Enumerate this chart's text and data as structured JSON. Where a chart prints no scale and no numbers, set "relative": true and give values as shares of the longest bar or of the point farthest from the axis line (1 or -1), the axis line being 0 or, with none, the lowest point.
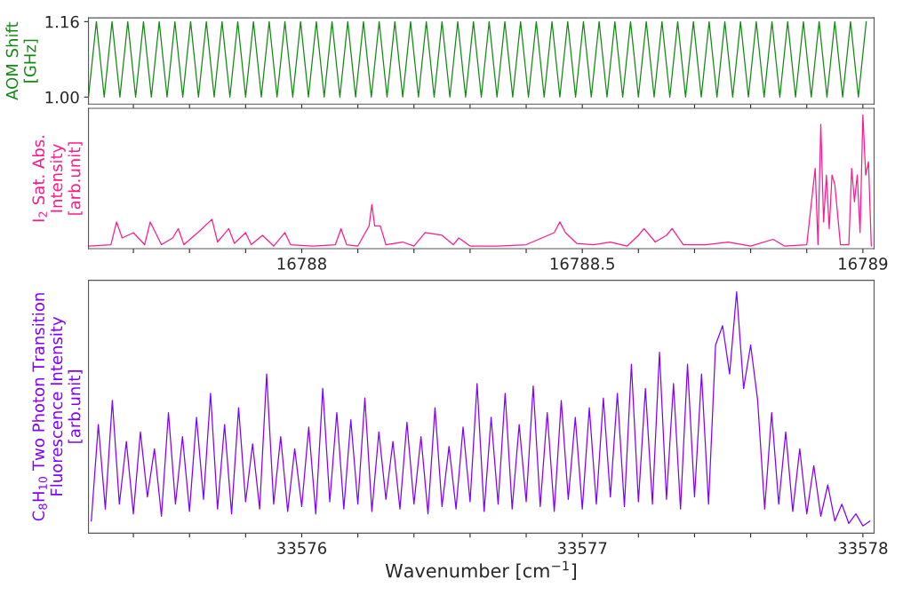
{
  "chart_data": [
    {
      "type": "line",
      "ylabel": "AOM Shift\n[GHz]",
      "xlim": [
        16787.62,
        16789.02
      ],
      "ylim": [
        0.985,
        1.168
      ],
      "tick_labels": "y",
      "yticks": [
        {
          "value": 1.0,
          "label": "1.00"
        },
        {
          "value": 1.16,
          "label": "1.16"
        }
      ],
      "xticks": [
        {
          "value": 16787.7,
          "label": null
        },
        {
          "value": 16787.8,
          "label": null
        },
        {
          "value": 16787.9,
          "label": null
        },
        {
          "value": 16788,
          "label": null
        },
        {
          "value": 16788.1,
          "label": null
        },
        {
          "value": 16788.2,
          "label": null
        },
        {
          "value": 16788.3,
          "label": null
        },
        {
          "value": 16788.4,
          "label": null
        },
        {
          "value": 16788.5,
          "label": null
        },
        {
          "value": 16788.6,
          "label": null
        },
        {
          "value": 16788.7,
          "label": null
        },
        {
          "value": 16788.8,
          "label": null
        },
        {
          "value": 16788.9,
          "label": null
        },
        {
          "value": 16789,
          "label": null
        }
      ],
      "series": [
        {
          "color": "#108a10",
          "x": [
            16787.62,
            16787.634,
            16787.648,
            16787.662,
            16787.676,
            16787.69,
            16787.704,
            16787.718,
            16787.732,
            16787.746,
            16787.76,
            16787.774,
            16787.788,
            16787.802,
            16787.816,
            16787.83,
            16787.844,
            16787.858,
            16787.872,
            16787.886,
            16787.9,
            16787.914,
            16787.928,
            16787.942,
            16787.956,
            16787.97,
            16787.984,
            16787.998,
            16788.012,
            16788.026,
            16788.04,
            16788.054,
            16788.068,
            16788.082,
            16788.096,
            16788.11,
            16788.124,
            16788.138,
            16788.152,
            16788.166,
            16788.18,
            16788.194,
            16788.208,
            16788.222,
            16788.236,
            16788.25,
            16788.264,
            16788.278,
            16788.292,
            16788.306,
            16788.32,
            16788.334,
            16788.348,
            16788.362,
            16788.376,
            16788.39,
            16788.404,
            16788.418,
            16788.432,
            16788.446,
            16788.46,
            16788.474,
            16788.488,
            16788.502,
            16788.516,
            16788.53,
            16788.544,
            16788.558,
            16788.572,
            16788.586,
            16788.6,
            16788.614,
            16788.628,
            16788.642,
            16788.656,
            16788.67,
            16788.684,
            16788.698,
            16788.712,
            16788.726,
            16788.74,
            16788.754,
            16788.768,
            16788.782,
            16788.796,
            16788.81,
            16788.824,
            16788.838,
            16788.852,
            16788.866,
            16788.88,
            16788.894,
            16788.908,
            16788.922,
            16788.936,
            16788.95,
            16788.964,
            16788.978,
            16788.992,
            16789.006
          ],
          "values": [
            1.0,
            1.16,
            1.0,
            1.16,
            1.0,
            1.16,
            1.0,
            1.16,
            1.0,
            1.16,
            1.0,
            1.16,
            1.0,
            1.16,
            1.0,
            1.16,
            1.0,
            1.16,
            1.0,
            1.16,
            1.0,
            1.16,
            1.0,
            1.16,
            1.0,
            1.16,
            1.0,
            1.16,
            1.0,
            1.16,
            1.0,
            1.16,
            1.0,
            1.16,
            1.0,
            1.16,
            1.0,
            1.16,
            1.0,
            1.16,
            1.0,
            1.16,
            1.0,
            1.16,
            1.0,
            1.16,
            1.0,
            1.16,
            1.0,
            1.16,
            1.0,
            1.16,
            1.0,
            1.16,
            1.0,
            1.16,
            1.0,
            1.16,
            1.0,
            1.16,
            1.0,
            1.16,
            1.0,
            1.16,
            1.0,
            1.16,
            1.0,
            1.16,
            1.0,
            1.16,
            1.0,
            1.16,
            1.0,
            1.16,
            1.0,
            1.16,
            1.0,
            1.16,
            1.0,
            1.16,
            1.0,
            1.16,
            1.0,
            1.16,
            1.0,
            1.16,
            1.0,
            1.16,
            1.0,
            1.16,
            1.0,
            1.16,
            1.0,
            1.16,
            1.0,
            1.16,
            1.0,
            1.16,
            1.0,
            1.16
          ]
        }
      ]
    },
    {
      "type": "line",
      "ylabel": "I$_{2}$ Sat. Abs.\nIntensity\n[arb.unit]",
      "relative": true,
      "xlim": [
        16787.62,
        16789.02
      ],
      "tick_labels": "x",
      "xticks": [
        {
          "value": 16787.7,
          "label": null
        },
        {
          "value": 16787.8,
          "label": null
        },
        {
          "value": 16787.9,
          "label": null
        },
        16788,
        {
          "value": 16788.1,
          "label": null
        },
        {
          "value": 16788.2,
          "label": null
        },
        {
          "value": 16788.3,
          "label": null
        },
        {
          "value": 16788.4,
          "label": null
        },
        16788.5,
        {
          "value": 16788.6,
          "label": null
        },
        {
          "value": 16788.7,
          "label": null
        },
        {
          "value": 16788.8,
          "label": null
        },
        {
          "value": 16788.9,
          "label": null
        },
        16789
      ],
      "series": [
        {
          "color": "#ff1a8c",
          "x": [
            16787.62,
            16787.66,
            16787.67,
            16787.68,
            16787.7,
            16787.72,
            16787.73,
            16787.75,
            16787.77,
            16787.78,
            16787.79,
            16787.82,
            16787.84,
            16787.85,
            16787.87,
            16787.88,
            16787.9,
            16787.91,
            16787.93,
            16787.95,
            16787.97,
            16787.98,
            16788.02,
            16788.06,
            16788.07,
            16788.08,
            16788.1,
            16788.12,
            16788.125,
            16788.13,
            16788.14,
            16788.15,
            16788.18,
            16788.2,
            16788.22,
            16788.25,
            16788.27,
            16788.28,
            16788.3,
            16788.35,
            16788.4,
            16788.45,
            16788.46,
            16788.47,
            16788.49,
            16788.52,
            16788.55,
            16788.58,
            16788.6,
            16788.61,
            16788.63,
            16788.65,
            16788.66,
            16788.68,
            16788.72,
            16788.76,
            16788.8,
            16788.84,
            16788.86,
            16788.9,
            16788.915,
            16788.92,
            16788.925,
            16788.93,
            16788.935,
            16788.94,
            16788.945,
            16788.95,
            16788.96,
            16788.975,
            16788.98,
            16788.985,
            16788.99,
            16788.995,
            16789.0,
            16789.005,
            16789.01,
            16789.015
          ],
          "values": [
            0.02,
            0.03,
            0.2,
            0.08,
            0.12,
            0.03,
            0.2,
            0.03,
            0.08,
            0.15,
            0.03,
            0.14,
            0.22,
            0.05,
            0.15,
            0.04,
            0.12,
            0.03,
            0.1,
            0.02,
            0.12,
            0.03,
            0.02,
            0.03,
            0.15,
            0.03,
            0.02,
            0.17,
            0.33,
            0.17,
            0.17,
            0.03,
            0.05,
            0.02,
            0.12,
            0.1,
            0.03,
            0.08,
            0.02,
            0.02,
            0.03,
            0.12,
            0.2,
            0.12,
            0.04,
            0.03,
            0.05,
            0.02,
            0.1,
            0.15,
            0.05,
            0.1,
            0.15,
            0.03,
            0.03,
            0.05,
            0.02,
            0.07,
            0.02,
            0.03,
            0.6,
            0.03,
            0.93,
            0.2,
            0.55,
            0.15,
            0.55,
            0.48,
            0.03,
            0.03,
            0.6,
            0.35,
            0.55,
            0.12,
            1.0,
            0.55,
            0.65,
            0.02
          ]
        }
      ]
    },
    {
      "type": "line",
      "ylabel": "C$_{8}$H$_{10}$ Two Photon Transition\nFluorescence Intensity\n[arb.unit]",
      "xlabel": "Wavenumber [cm$^{−1}$]",
      "relative": true,
      "xlim": [
        33575.24,
        33578.04
      ],
      "tick_labels": "x",
      "xticks": [
        {
          "value": 33575.4,
          "label": null
        },
        {
          "value": 33575.6,
          "label": null
        },
        {
          "value": 33575.8,
          "label": null
        },
        33576,
        {
          "value": 33576.2,
          "label": null
        },
        {
          "value": 33576.4,
          "label": null
        },
        {
          "value": 33576.6,
          "label": null
        },
        {
          "value": 33576.8,
          "label": null
        },
        33577,
        {
          "value": 33577.2,
          "label": null
        },
        {
          "value": 33577.4,
          "label": null
        },
        {
          "value": 33577.6,
          "label": null
        },
        {
          "value": 33577.8,
          "label": null
        },
        33578
      ],
      "series": [
        {
          "color": "#8000ff",
          "x": [
            33575.25,
            33575.275,
            33575.3,
            33575.325,
            33575.35,
            33575.375,
            33575.4,
            33575.425,
            33575.45,
            33575.475,
            33575.5,
            33575.525,
            33575.55,
            33575.575,
            33575.6,
            33575.625,
            33575.65,
            33575.675,
            33575.7,
            33575.725,
            33575.75,
            33575.775,
            33575.8,
            33575.825,
            33575.85,
            33575.875,
            33575.9,
            33575.925,
            33575.95,
            33575.975,
            33576.0,
            33576.025,
            33576.05,
            33576.075,
            33576.1,
            33576.125,
            33576.15,
            33576.175,
            33576.2,
            33576.225,
            33576.25,
            33576.275,
            33576.3,
            33576.325,
            33576.35,
            33576.375,
            33576.4,
            33576.425,
            33576.45,
            33576.475,
            33576.5,
            33576.525,
            33576.55,
            33576.575,
            33576.6,
            33576.625,
            33576.65,
            33576.675,
            33576.7,
            33576.725,
            33576.75,
            33576.775,
            33576.8,
            33576.825,
            33576.85,
            33576.875,
            33576.9,
            33576.925,
            33576.95,
            33576.975,
            33577.0,
            33577.025,
            33577.05,
            33577.075,
            33577.1,
            33577.125,
            33577.15,
            33577.175,
            33577.2,
            33577.225,
            33577.25,
            33577.275,
            33577.3,
            33577.325,
            33577.35,
            33577.375,
            33577.4,
            33577.425,
            33577.45,
            33577.475,
            33577.5,
            33577.525,
            33577.55,
            33577.575,
            33577.6,
            33577.625,
            33577.65,
            33577.675,
            33577.7,
            33577.725,
            33577.75,
            33577.775,
            33577.8,
            33577.825,
            33577.85,
            33577.875,
            33577.9,
            33577.925,
            33577.95,
            33577.975,
            33578.0,
            33578.025
          ],
          "values": [
            0.05,
            0.45,
            0.1,
            0.55,
            0.12,
            0.38,
            0.08,
            0.42,
            0.15,
            0.35,
            0.07,
            0.5,
            0.12,
            0.4,
            0.09,
            0.48,
            0.14,
            0.58,
            0.1,
            0.45,
            0.08,
            0.52,
            0.13,
            0.37,
            0.1,
            0.66,
            0.12,
            0.4,
            0.09,
            0.35,
            0.11,
            0.44,
            0.08,
            0.6,
            0.13,
            0.5,
            0.1,
            0.47,
            0.12,
            0.56,
            0.09,
            0.42,
            0.14,
            0.38,
            0.1,
            0.46,
            0.12,
            0.4,
            0.08,
            0.52,
            0.11,
            0.36,
            0.1,
            0.44,
            0.13,
            0.62,
            0.09,
            0.48,
            0.12,
            0.58,
            0.1,
            0.45,
            0.13,
            0.61,
            0.11,
            0.5,
            0.09,
            0.55,
            0.14,
            0.48,
            0.1,
            0.52,
            0.12,
            0.56,
            0.15,
            0.58,
            0.11,
            0.7,
            0.13,
            0.6,
            0.12,
            0.75,
            0.14,
            0.62,
            0.1,
            0.7,
            0.15,
            0.66,
            0.12,
            0.78,
            0.86,
            0.66,
            1.0,
            0.6,
            0.78,
            0.55,
            0.1,
            0.5,
            0.12,
            0.42,
            0.09,
            0.35,
            0.08,
            0.28,
            0.07,
            0.2,
            0.05,
            0.12,
            0.04,
            0.08,
            0.03,
            0.05
          ]
        }
      ]
    }
  ]
}
